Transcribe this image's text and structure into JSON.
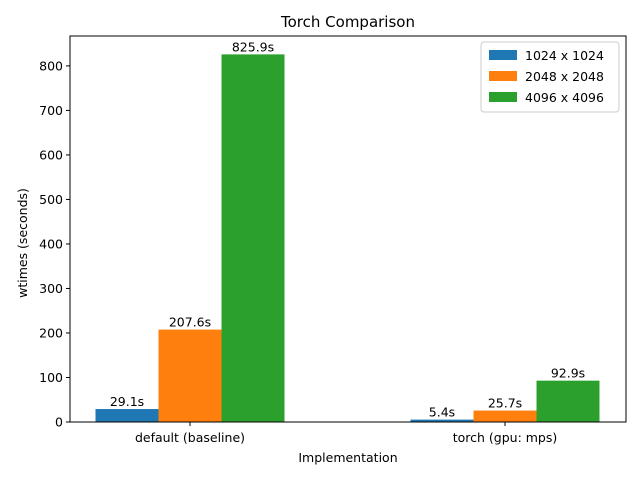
{
  "chart_data": {
    "type": "bar",
    "title": "Torch Comparison",
    "xlabel": "Implementation",
    "ylabel": "wtimes (seconds)",
    "categories": [
      "default (baseline)",
      "torch (gpu: mps)"
    ],
    "series": [
      {
        "name": "1024 x 1024",
        "color": "#1f77b4",
        "values": [
          29.1,
          5.4
        ],
        "labels": [
          "29.1s",
          "5.4s"
        ]
      },
      {
        "name": "2048 x 2048",
        "color": "#ff7f0e",
        "values": [
          207.6,
          25.7
        ],
        "labels": [
          "207.6s",
          "25.7s"
        ]
      },
      {
        "name": "4096 x 4096",
        "color": "#2ca02c",
        "values": [
          825.9,
          92.9
        ],
        "labels": [
          "825.9s",
          "92.9s"
        ]
      }
    ],
    "ylim": [
      0,
      867.2
    ],
    "yticks": [
      0,
      100,
      200,
      300,
      400,
      500,
      600,
      700,
      800
    ],
    "grid": false,
    "legend_position": "top-right"
  }
}
